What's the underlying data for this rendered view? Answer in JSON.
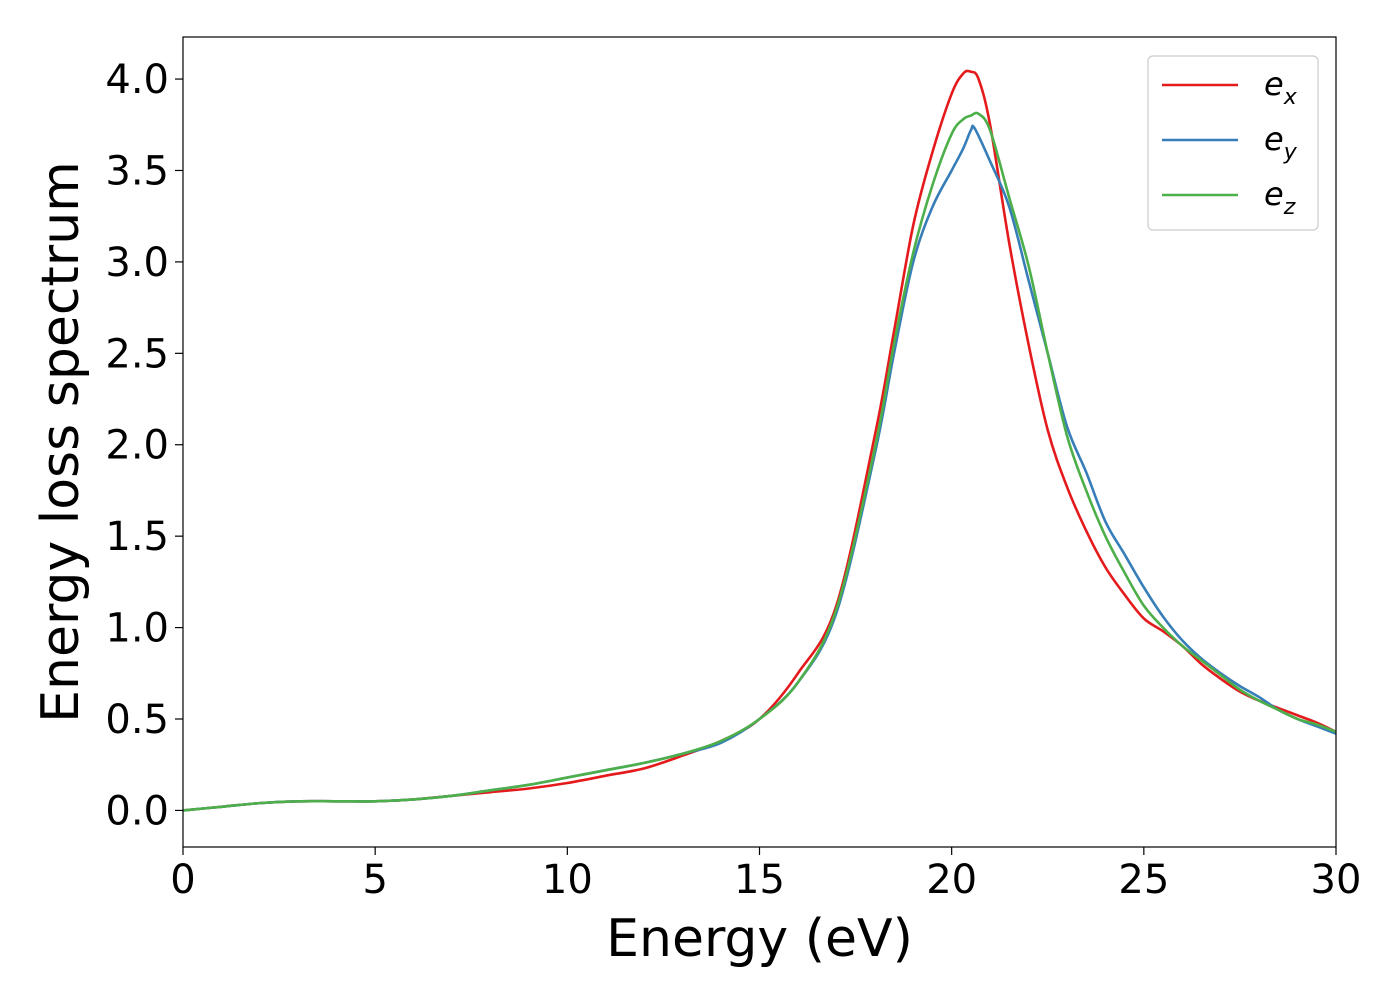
{
  "chart_data": {
    "type": "line",
    "xlabel": "Energy (eV)",
    "ylabel": "Energy loss spectrum",
    "xlim": [
      0,
      30
    ],
    "ylim": [
      -0.2,
      4.23
    ],
    "xticks": [
      0,
      5,
      10,
      15,
      20,
      25,
      30
    ],
    "yticks": [
      0.0,
      0.5,
      1.0,
      1.5,
      2.0,
      2.5,
      3.0,
      3.5,
      4.0
    ],
    "xtick_labels": [
      "0",
      "5",
      "10",
      "15",
      "20",
      "25",
      "30"
    ],
    "ytick_labels": [
      "0.0",
      "0.5",
      "1.0",
      "1.5",
      "2.0",
      "2.5",
      "3.0",
      "3.5",
      "4.0"
    ],
    "grid": false,
    "legend_position": "top-right",
    "series": [
      {
        "name": "e",
        "sub": "x",
        "color": "#e41a1c",
        "x": [
          0,
          1,
          2,
          3,
          4,
          5,
          6,
          7,
          8,
          9,
          10,
          11,
          12,
          13,
          14,
          15,
          16,
          17,
          18,
          18.5,
          19,
          19.5,
          20,
          20.3,
          20.5,
          20.7,
          21,
          21.5,
          22,
          22.5,
          23,
          23.5,
          24,
          24.5,
          25,
          25.5,
          26,
          26.5,
          27,
          27.5,
          28,
          28.5,
          29,
          29.5,
          30
        ],
        "y": [
          0.0,
          0.02,
          0.04,
          0.05,
          0.05,
          0.05,
          0.06,
          0.08,
          0.1,
          0.12,
          0.15,
          0.19,
          0.23,
          0.3,
          0.38,
          0.5,
          0.75,
          1.12,
          2.05,
          2.62,
          3.2,
          3.6,
          3.92,
          4.03,
          4.04,
          4.0,
          3.75,
          3.1,
          2.55,
          2.08,
          1.77,
          1.53,
          1.33,
          1.18,
          1.05,
          0.98,
          0.9,
          0.8,
          0.72,
          0.65,
          0.6,
          0.56,
          0.52,
          0.48,
          0.43
        ]
      },
      {
        "name": "e",
        "sub": "y",
        "color": "#377eb8",
        "x": [
          0,
          1,
          2,
          3,
          4,
          5,
          6,
          7,
          8,
          9,
          10,
          11,
          12,
          13,
          14,
          15,
          16,
          17,
          18,
          18.5,
          19,
          19.5,
          20,
          20.3,
          20.5,
          20.6,
          21,
          21.5,
          22,
          22.5,
          23,
          23.5,
          24,
          24.5,
          25,
          25.5,
          26,
          26.5,
          27,
          27.5,
          28,
          28.5,
          29,
          29.5,
          30
        ],
        "y": [
          0.0,
          0.02,
          0.04,
          0.05,
          0.05,
          0.05,
          0.06,
          0.08,
          0.11,
          0.14,
          0.18,
          0.22,
          0.26,
          0.31,
          0.37,
          0.5,
          0.7,
          1.08,
          1.95,
          2.5,
          3.0,
          3.3,
          3.5,
          3.62,
          3.72,
          3.73,
          3.55,
          3.3,
          2.9,
          2.5,
          2.1,
          1.85,
          1.58,
          1.4,
          1.22,
          1.06,
          0.93,
          0.83,
          0.75,
          0.68,
          0.62,
          0.55,
          0.5,
          0.46,
          0.42
        ]
      },
      {
        "name": "e",
        "sub": "z",
        "color": "#4daf4a",
        "x": [
          0,
          1,
          2,
          3,
          4,
          5,
          6,
          7,
          8,
          9,
          10,
          11,
          12,
          13,
          14,
          15,
          16,
          17,
          18,
          18.5,
          19,
          19.5,
          20,
          20.3,
          20.5,
          20.7,
          21,
          21.5,
          22,
          22.5,
          23,
          23.5,
          24,
          24.5,
          25,
          25.5,
          26,
          26.5,
          27,
          27.5,
          28,
          28.5,
          29,
          29.5,
          30
        ],
        "y": [
          0.0,
          0.02,
          0.04,
          0.05,
          0.05,
          0.05,
          0.06,
          0.08,
          0.11,
          0.14,
          0.18,
          0.22,
          0.26,
          0.31,
          0.38,
          0.5,
          0.7,
          1.1,
          1.98,
          2.55,
          3.05,
          3.42,
          3.7,
          3.78,
          3.8,
          3.81,
          3.72,
          3.35,
          2.98,
          2.5,
          2.05,
          1.75,
          1.5,
          1.3,
          1.12,
          1.0,
          0.9,
          0.82,
          0.74,
          0.66,
          0.6,
          0.55,
          0.5,
          0.47,
          0.43
        ]
      }
    ]
  }
}
